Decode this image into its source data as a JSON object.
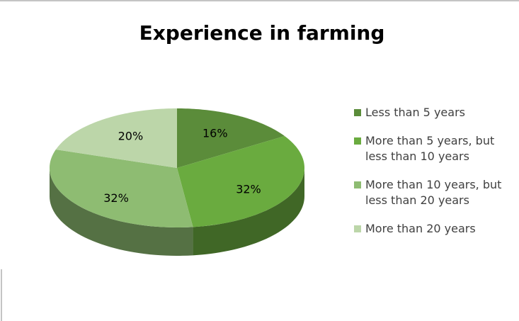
{
  "chart_data": {
    "type": "pie",
    "title": "Experience in farming",
    "categories": [
      "Less than 5 years",
      "More than 5 years, but less than 10 years",
      "More than 10 years, but less than 20 years",
      "More than 20 years"
    ],
    "values": [
      16,
      32,
      32,
      20
    ],
    "value_labels": [
      "16%",
      "32%",
      "32%",
      "20%"
    ],
    "colors": [
      "#5b8c3a",
      "#6aab3f",
      "#8ebc72",
      "#bcd6a9"
    ],
    "legend": "right"
  }
}
